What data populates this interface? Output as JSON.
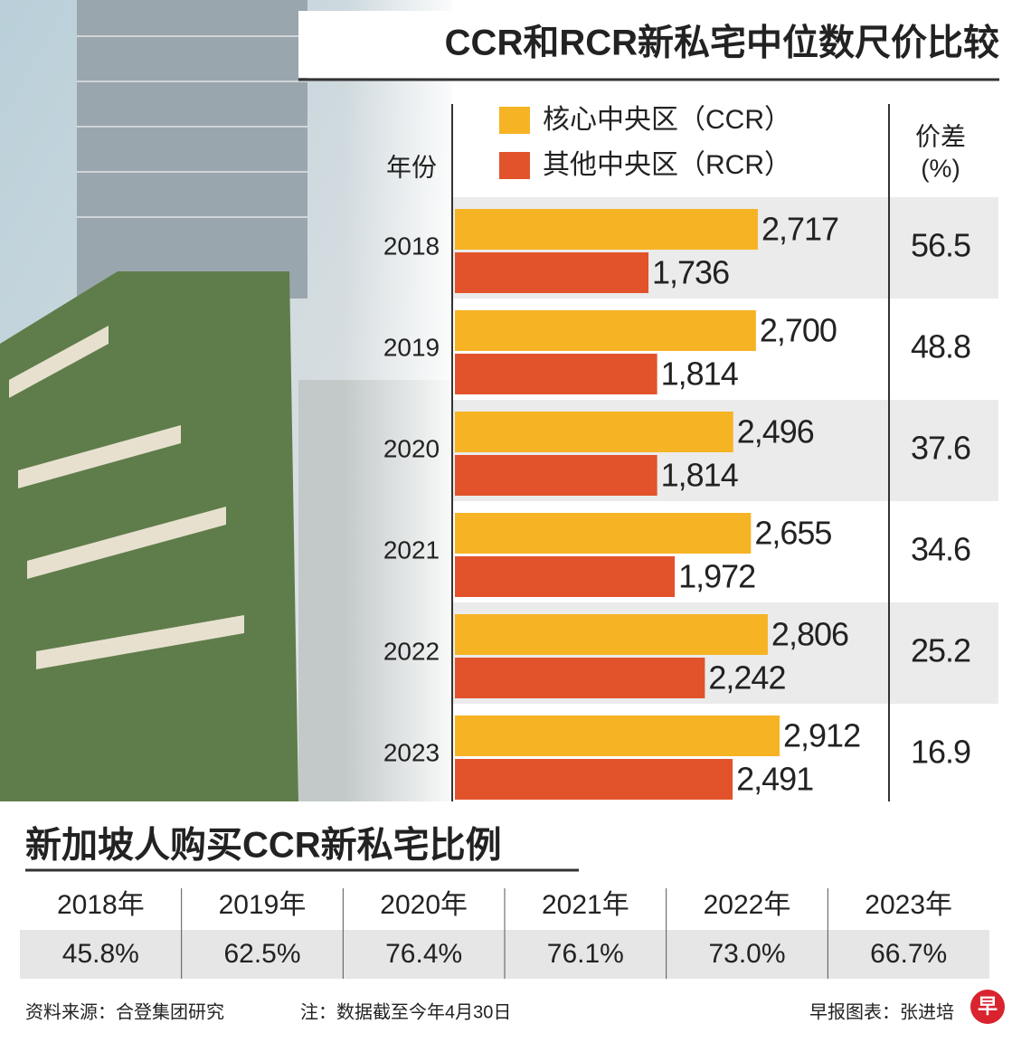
{
  "chart_data": {
    "type": "bar",
    "orientation": "horizontal",
    "title": "CCR和RCR新私宅中位数尺价比较",
    "category_header": "年份",
    "categories": [
      "2018",
      "2019",
      "2020",
      "2021",
      "2022",
      "2023"
    ],
    "series": [
      {
        "name": "核心中央区（CCR）",
        "color": "#f6b324",
        "values": [
          2717,
          2700,
          2496,
          2655,
          2806,
          2912
        ],
        "value_labels": [
          "2,717",
          "2,700",
          "2,496",
          "2,655",
          "2,806",
          "2,912"
        ]
      },
      {
        "name": "其他中央区（RCR）",
        "color": "#e2532b",
        "values": [
          1736,
          1814,
          1814,
          1972,
          2242,
          2491
        ],
        "value_labels": [
          "1,736",
          "1,814",
          "1,814",
          "1,972",
          "2,242",
          "2,491"
        ]
      }
    ],
    "diff_header": "价差",
    "diff_unit": "(%)",
    "diff_values": [
      56.5,
      48.8,
      37.6,
      34.6,
      25.2,
      16.9
    ]
  },
  "table": {
    "title": "新加坡人购买CCR新私宅比例",
    "header": [
      "2018年",
      "2019年",
      "2020年",
      "2021年",
      "2022年",
      "2023年"
    ],
    "rows": [
      [
        "45.8%",
        "62.5%",
        "76.4%",
        "76.1%",
        "73.0%",
        "66.7%"
      ]
    ]
  },
  "footer": {
    "source": "资料来源：合登集团研究",
    "note": "注：数据截至今年4月30日",
    "credit": "早报图表：张进培",
    "logo": "早"
  }
}
